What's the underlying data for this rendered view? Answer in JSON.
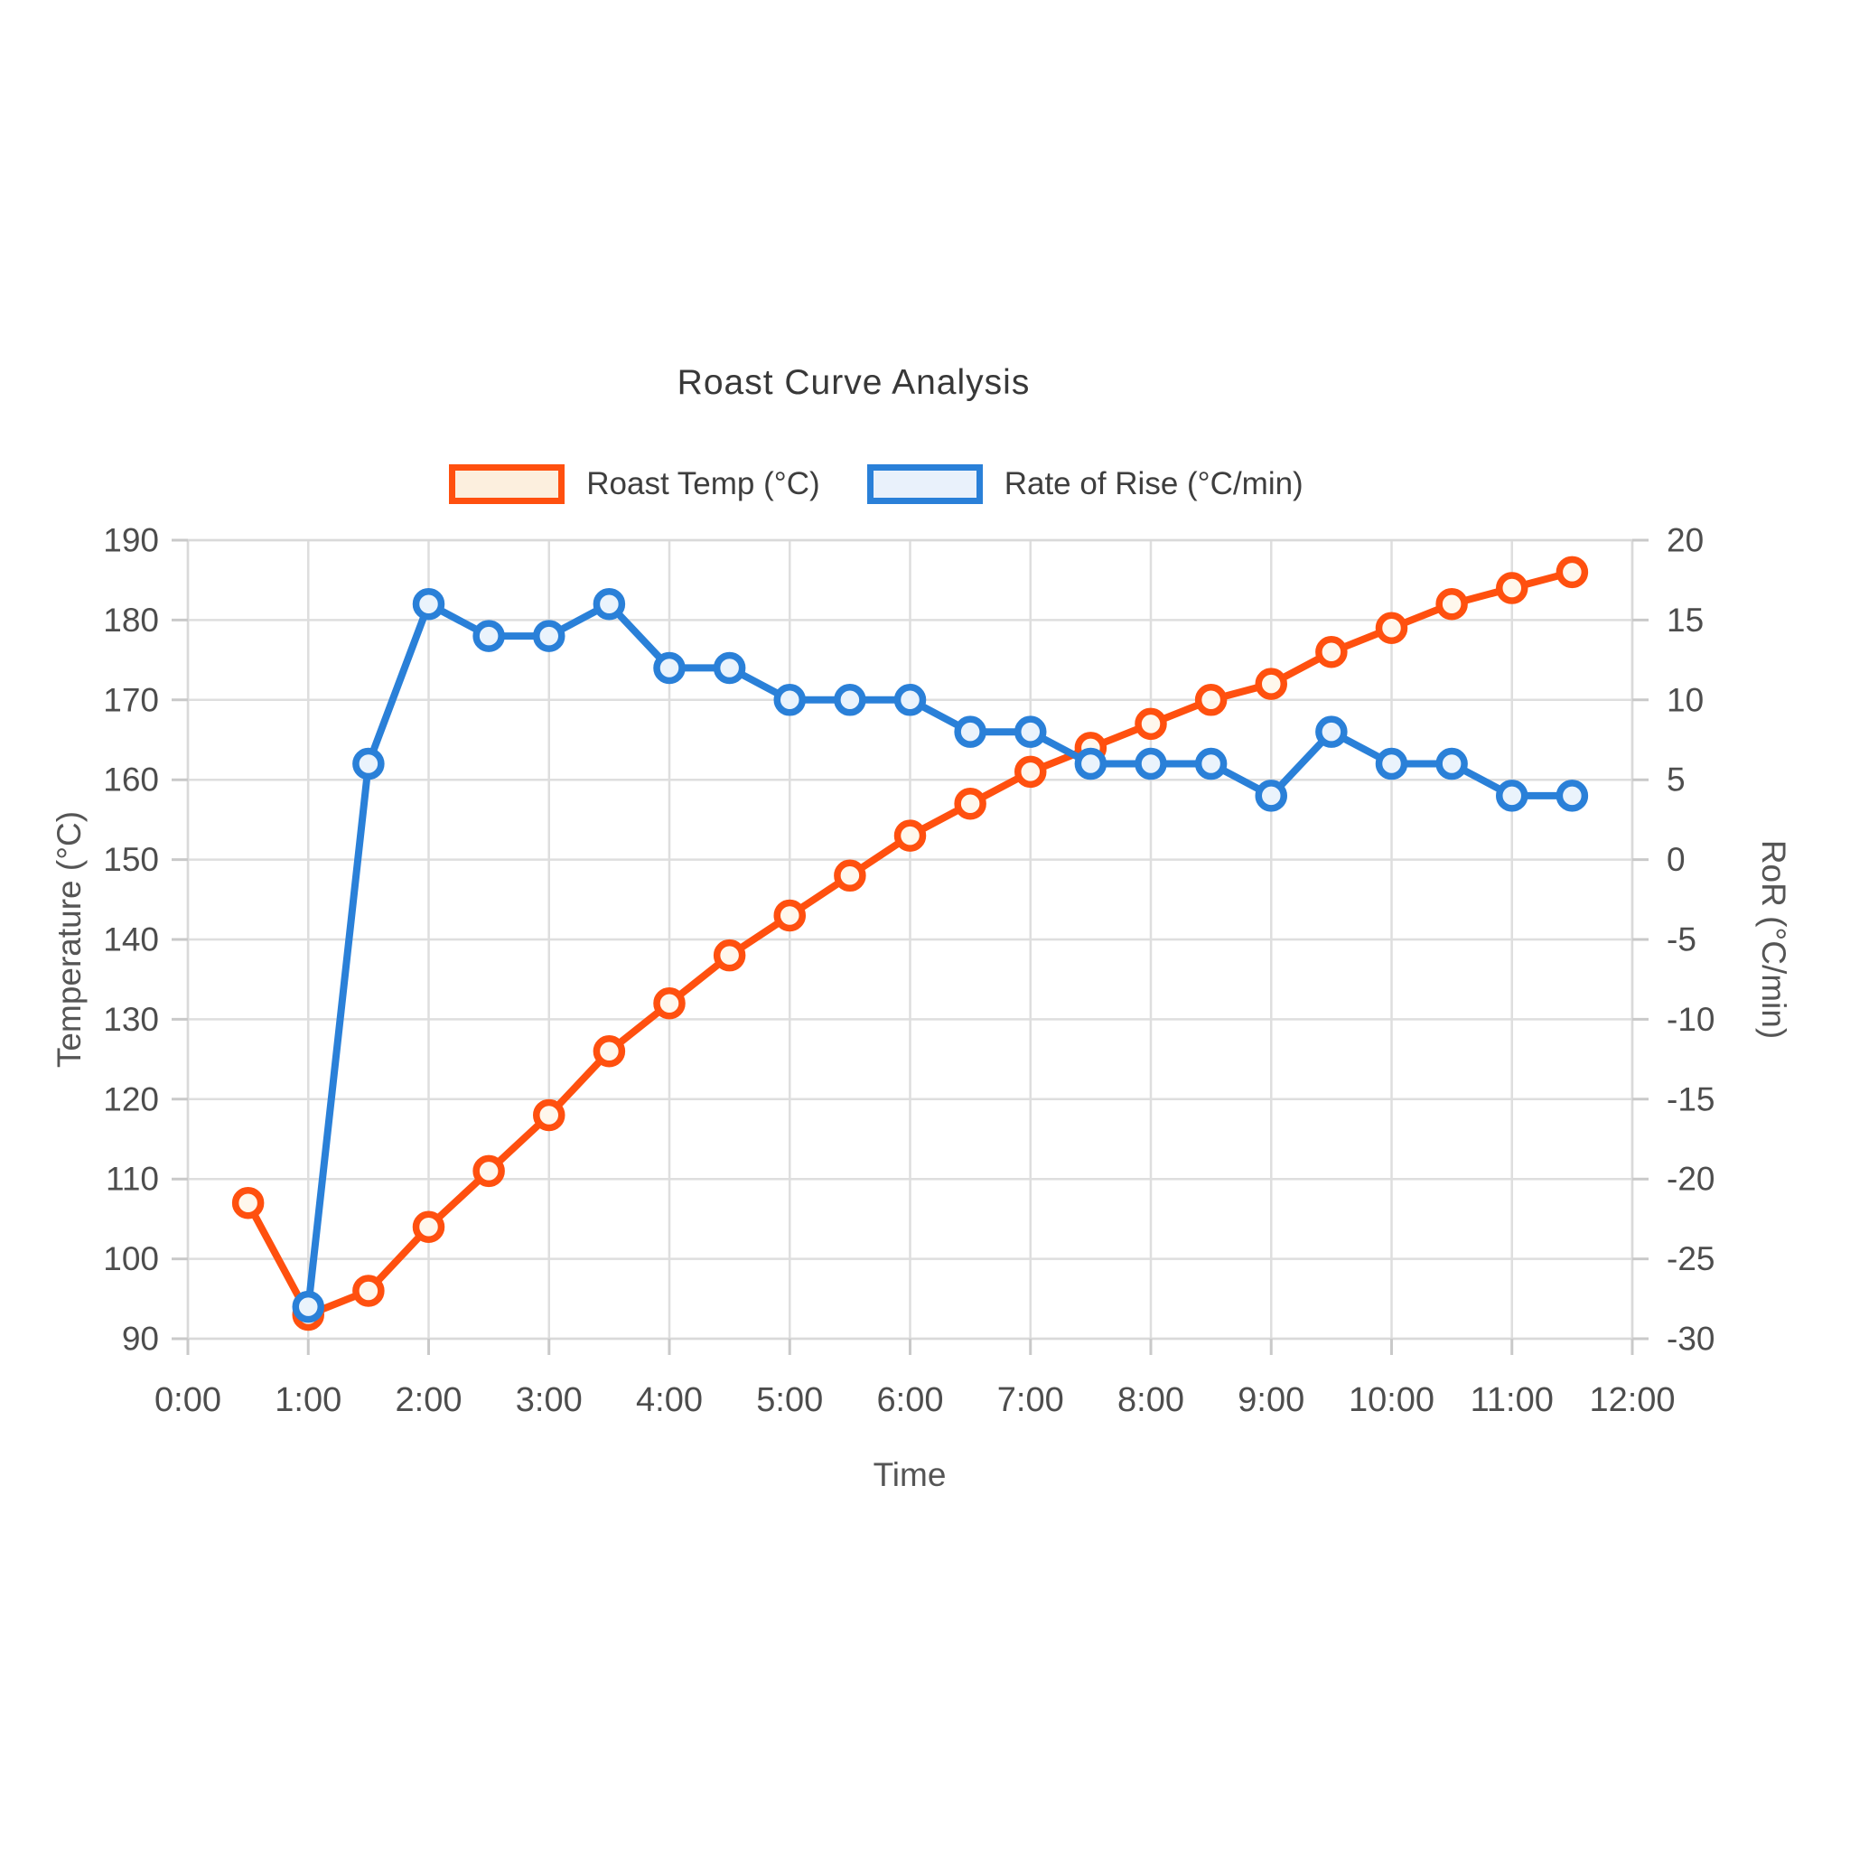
{
  "title": "Roast Curve Analysis",
  "style": {
    "background": "#ffffff",
    "grid_color": "#dedede",
    "border_color": "#d9d9d9",
    "tick_mark_color": "#c9c9c9",
    "tick_label_color": "#4d4d4d",
    "axis_title_color": "#555555",
    "title_color": "#383838",
    "legend_label_color": "#3e3e3e"
  },
  "chart_data": {
    "type": "line",
    "title": "Roast Curve Analysis",
    "xlabel": "Time",
    "grid": true,
    "legend_position": "top",
    "x_range": [
      0,
      720
    ],
    "x_tick_minutes": [
      0,
      60,
      120,
      180,
      240,
      300,
      360,
      420,
      480,
      540,
      600,
      660,
      720
    ],
    "x_tick_labels": [
      "0:00",
      "1:00",
      "2:00",
      "3:00",
      "4:00",
      "5:00",
      "6:00",
      "7:00",
      "8:00",
      "9:00",
      "10:00",
      "11:00",
      "12:00"
    ],
    "axes": {
      "left": {
        "label": "Temperature (°C)",
        "min": 90,
        "max": 190,
        "ticks": [
          90,
          100,
          110,
          120,
          130,
          140,
          150,
          160,
          170,
          180,
          190
        ]
      },
      "right": {
        "label": "RoR (°C/min)",
        "min": -30,
        "max": 20,
        "ticks": [
          -30,
          -25,
          -20,
          -15,
          -10,
          -5,
          0,
          5,
          10,
          15,
          20
        ]
      }
    },
    "series": [
      {
        "name": "Roast Temp (°C)",
        "axis": "left",
        "color": "#ff500f",
        "legend_fill": "#fcefde",
        "marker_fill": "#fff7ec",
        "x_minutes": [
          30,
          60,
          90,
          120,
          150,
          180,
          210,
          240,
          270,
          300,
          330,
          360,
          390,
          420,
          450,
          480,
          510,
          540,
          570,
          600,
          630,
          660,
          690
        ],
        "values": [
          107,
          93,
          96,
          104,
          111,
          118,
          126,
          132,
          138,
          143,
          148,
          153,
          157,
          161,
          164,
          167,
          170,
          172,
          176,
          179,
          182,
          184,
          186
        ]
      },
      {
        "name": "Rate of Rise (°C/min)",
        "axis": "right",
        "color": "#2a80d8",
        "legend_fill": "#e9f1fb",
        "marker_fill": "#eaf3fc",
        "x_minutes": [
          60,
          90,
          120,
          150,
          180,
          210,
          240,
          270,
          300,
          330,
          360,
          390,
          420,
          450,
          480,
          510,
          540,
          570,
          600,
          630,
          660,
          690
        ],
        "values": [
          -28,
          6,
          16,
          14,
          14,
          16,
          12,
          12,
          10,
          10,
          10,
          8,
          8,
          6,
          6,
          6,
          4,
          8,
          6,
          6,
          4,
          4
        ]
      }
    ]
  }
}
